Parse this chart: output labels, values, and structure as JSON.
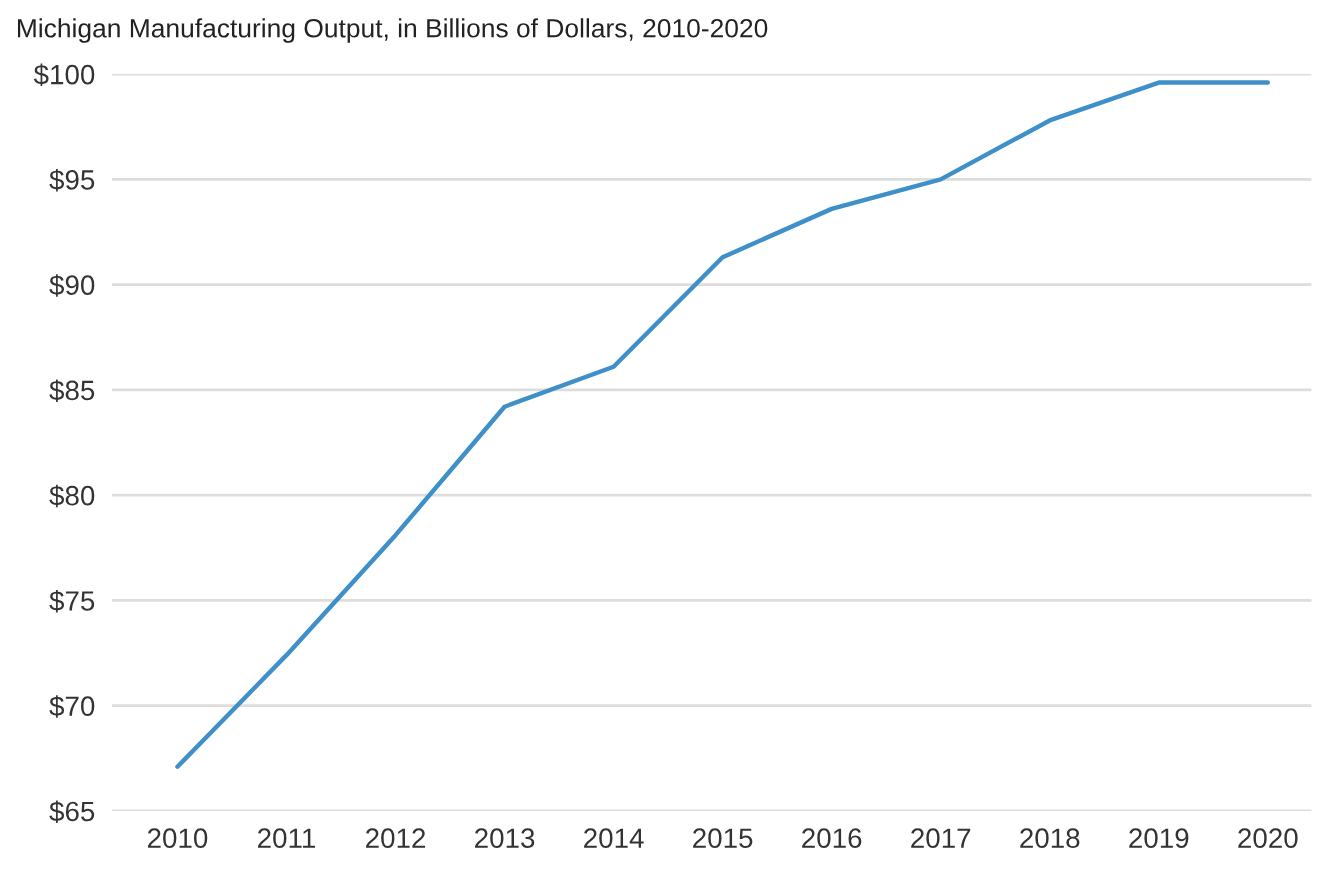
{
  "chart_data": {
    "type": "line",
    "title": "Michigan Manufacturing Output, in Billions of Dollars, 2010-2020",
    "categories": [
      "2010",
      "2011",
      "2012",
      "2013",
      "2014",
      "2015",
      "2016",
      "2017",
      "2018",
      "2019",
      "2020"
    ],
    "series": [
      {
        "color": "#3f8fc9",
        "values": [
          67.1,
          72.4,
          78.1,
          84.2,
          86.1,
          91.3,
          93.6,
          95.0,
          97.8,
          99.6,
          99.6
        ]
      }
    ],
    "ylim": [
      65,
      100
    ],
    "yticks": [
      {
        "value": 65,
        "label": "$65"
      },
      {
        "value": 70,
        "label": "$70"
      },
      {
        "value": 75,
        "label": "$75"
      },
      {
        "value": 80,
        "label": "$80"
      },
      {
        "value": 85,
        "label": "$85"
      },
      {
        "value": 90,
        "label": "$90"
      },
      {
        "value": 95,
        "label": "$95"
      },
      {
        "value": 100,
        "label": "$100"
      }
    ],
    "grid": "y",
    "marker": "none",
    "line_style": "solid"
  }
}
